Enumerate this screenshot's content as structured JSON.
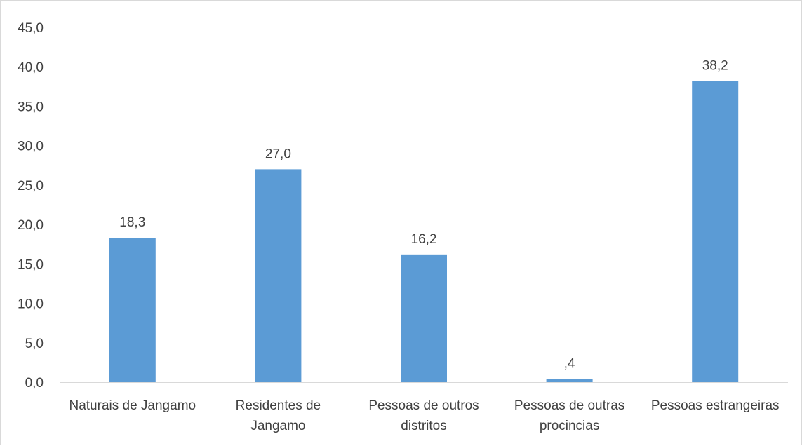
{
  "chart_data": {
    "type": "bar",
    "title": "",
    "xlabel": "",
    "ylabel": "",
    "categories": [
      [
        "Naturais de Jangamo"
      ],
      [
        "Residentes de",
        "Jangamo"
      ],
      [
        "Pessoas de  outros",
        "distritos"
      ],
      [
        "Pessoas de outras",
        "procincias"
      ],
      [
        "Pessoas estrangeiras"
      ]
    ],
    "values": [
      18.3,
      27.0,
      16.2,
      0.4,
      38.2
    ],
    "value_labels": [
      "18,3",
      "27,0",
      "16,2",
      ",4",
      "38,2"
    ],
    "ylim": [
      0,
      45
    ],
    "yticks": [
      "0,0",
      "5,0",
      "10,0",
      "15,0",
      "20,0",
      "25,0",
      "30,0",
      "35,0",
      "40,0",
      "45,0"
    ],
    "grid": false,
    "legend": "none",
    "bar_color": "#5b9bd5",
    "axis_color": "#d9d9d9",
    "text_color": "#404040"
  }
}
